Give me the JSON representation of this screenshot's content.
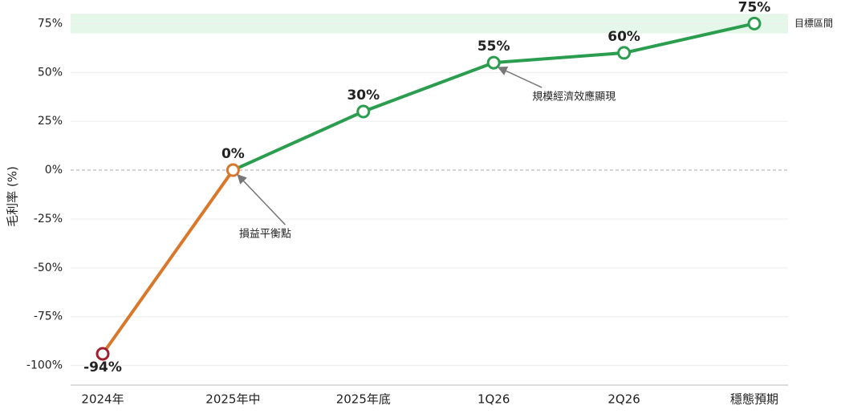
{
  "chart_data": {
    "type": "line",
    "y_label": "毛利率 (%)",
    "categories": [
      "2024年",
      "2025年中",
      "2025年底",
      "1Q26",
      "2Q26",
      "穩態預期"
    ],
    "series": [
      {
        "values": [
          -94,
          0,
          30,
          55,
          60,
          75
        ],
        "value_labels": [
          "-94%",
          "0%",
          "30%",
          "55%",
          "60%",
          "75%"
        ],
        "colors": [
          "#a31f2e",
          "#d9782a",
          "#2a9d4e",
          "#2a9d4e",
          "#2a9d4e",
          "#2a9d4e"
        ]
      }
    ],
    "ylim": [
      -110,
      85
    ],
    "yticks": [
      {
        "value": -100,
        "label": "-100%"
      },
      {
        "value": -75,
        "label": "-75%"
      },
      {
        "value": -50,
        "label": "-50%"
      },
      {
        "value": -25,
        "label": "-25%"
      },
      {
        "value": 0,
        "label": "0%"
      },
      {
        "value": 25,
        "label": "25%"
      },
      {
        "value": 50,
        "label": "50%"
      },
      {
        "value": 75,
        "label": "75%"
      }
    ],
    "grid": true,
    "target_band": {
      "range": [
        70,
        80
      ],
      "label": "目標區間",
      "color": "#dff5e4"
    },
    "annotations": [
      {
        "text": "損益平衡點",
        "point": 1
      },
      {
        "text": "規模經濟效應顯現",
        "point": 3
      }
    ]
  }
}
